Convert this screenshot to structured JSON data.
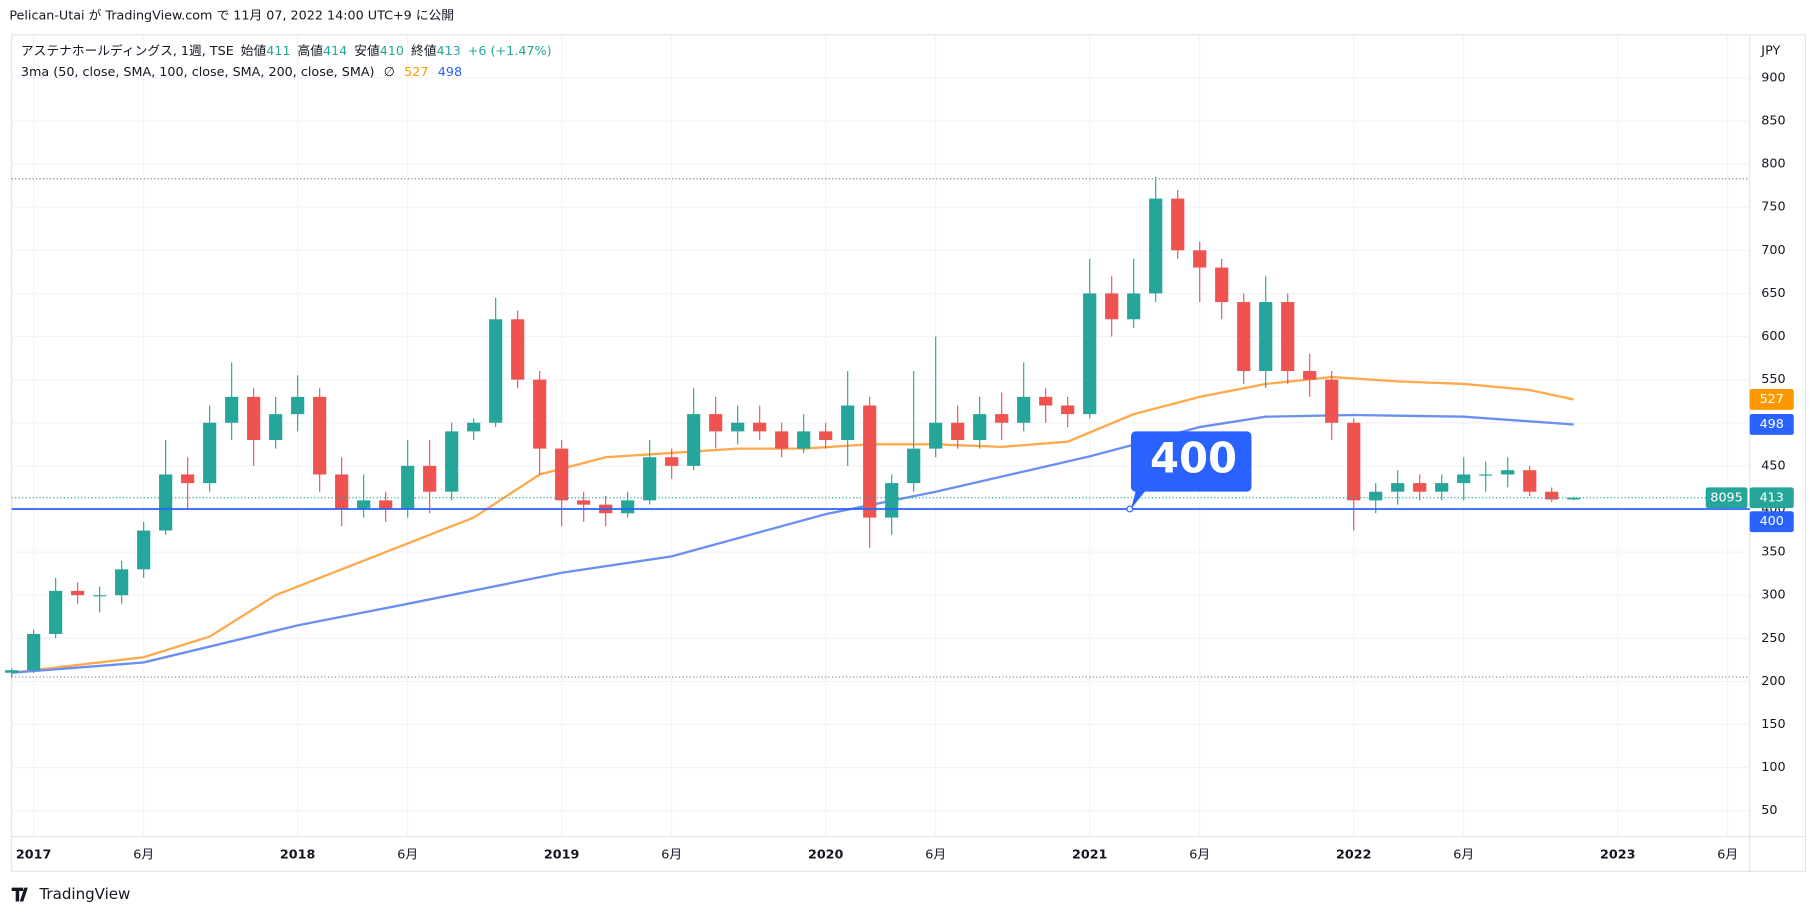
{
  "header": {
    "publish": "Pelican-Utai が TradingView.com で 11月 07, 2022 14:00 UTC+9 に公開",
    "logo": "TradingView"
  },
  "chart_data": {
    "type": "candlestick",
    "symbol": "アステナホールディングス, 1週, TSE",
    "ohlc_labels": [
      "始値",
      "高値",
      "安値",
      "終値"
    ],
    "change": "+6 (+1.47%)",
    "indicator": "3ma (50, close, SMA, 100, close, SMA, 200, close, SMA)",
    "indicator_icon": "∅",
    "currency": "JPY",
    "up_color": "#26a69a",
    "down_color": "#ef5350",
    "x": [
      "2016-12",
      "2017-01",
      "2017-02",
      "2017-03",
      "2017-04",
      "2017-05",
      "2017-06",
      "2017-07",
      "2017-08",
      "2017-09",
      "2017-10",
      "2017-11",
      "2017-12",
      "2018-01",
      "2018-02",
      "2018-03",
      "2018-04",
      "2018-05",
      "2018-06",
      "2018-07",
      "2018-08",
      "2018-09",
      "2018-10",
      "2018-11",
      "2018-12",
      "2019-01",
      "2019-02",
      "2019-03",
      "2019-04",
      "2019-05",
      "2019-06",
      "2019-07",
      "2019-08",
      "2019-09",
      "2019-10",
      "2019-11",
      "2019-12",
      "2020-01",
      "2020-02",
      "2020-03",
      "2020-04",
      "2020-05",
      "2020-06",
      "2020-07",
      "2020-08",
      "2020-09",
      "2020-10",
      "2020-11",
      "2020-12",
      "2021-01",
      "2021-02",
      "2021-03",
      "2021-04",
      "2021-05",
      "2021-06",
      "2021-07",
      "2021-08",
      "2021-09",
      "2021-10",
      "2021-11",
      "2021-12",
      "2022-01",
      "2022-02",
      "2022-03",
      "2022-04",
      "2022-05",
      "2022-06",
      "2022-07",
      "2022-08",
      "2022-09",
      "2022-10",
      "2022-11"
    ],
    "open": [
      210,
      213,
      255,
      305,
      300,
      300,
      330,
      375,
      440,
      430,
      500,
      530,
      480,
      510,
      530,
      440,
      400,
      410,
      400,
      450,
      420,
      490,
      500,
      620,
      550,
      470,
      410,
      405,
      395,
      410,
      460,
      450,
      510,
      490,
      500,
      490,
      470,
      490,
      480,
      520,
      390,
      430,
      470,
      500,
      480,
      510,
      500,
      530,
      520,
      510,
      650,
      620,
      650,
      760,
      700,
      680,
      640,
      560,
      640,
      560,
      550,
      500,
      410,
      420,
      430,
      420,
      430,
      440,
      440,
      445,
      420,
      411
    ],
    "high": [
      215,
      260,
      320,
      315,
      310,
      340,
      385,
      480,
      460,
      520,
      570,
      540,
      530,
      555,
      540,
      460,
      440,
      420,
      480,
      480,
      500,
      505,
      645,
      630,
      560,
      480,
      420,
      415,
      420,
      480,
      470,
      540,
      530,
      520,
      520,
      500,
      510,
      500,
      560,
      530,
      440,
      560,
      600,
      520,
      530,
      535,
      570,
      540,
      530,
      690,
      670,
      690,
      785,
      770,
      710,
      690,
      650,
      670,
      650,
      580,
      560,
      505,
      430,
      445,
      440,
      440,
      460,
      455,
      460,
      450,
      425,
      414
    ],
    "low": [
      205,
      210,
      250,
      290,
      280,
      290,
      320,
      370,
      400,
      420,
      480,
      450,
      470,
      490,
      420,
      380,
      390,
      385,
      390,
      395,
      410,
      480,
      495,
      540,
      440,
      380,
      385,
      380,
      390,
      405,
      435,
      445,
      470,
      475,
      480,
      460,
      465,
      470,
      450,
      355,
      370,
      420,
      460,
      470,
      470,
      480,
      490,
      500,
      495,
      505,
      600,
      610,
      640,
      690,
      640,
      620,
      545,
      540,
      545,
      530,
      480,
      375,
      395,
      405,
      410,
      410,
      410,
      420,
      425,
      415,
      408,
      410
    ],
    "close": [
      213,
      255,
      305,
      300,
      300,
      330,
      375,
      440,
      430,
      500,
      530,
      480,
      510,
      530,
      440,
      400,
      410,
      400,
      450,
      420,
      490,
      500,
      620,
      550,
      470,
      410,
      405,
      395,
      410,
      460,
      450,
      510,
      490,
      500,
      490,
      470,
      490,
      480,
      520,
      390,
      430,
      470,
      500,
      480,
      510,
      500,
      530,
      520,
      510,
      650,
      620,
      650,
      760,
      700,
      680,
      640,
      560,
      640,
      560,
      550,
      500,
      410,
      420,
      430,
      420,
      430,
      440,
      440,
      445,
      420,
      411,
      413
    ],
    "ma": [
      {
        "color": "#ffa94d",
        "x": [
          "2016-12",
          "2017-06",
          "2017-09",
          "2017-12",
          "2018-03",
          "2018-06",
          "2018-09",
          "2018-12",
          "2019-03",
          "2019-06",
          "2019-09",
          "2019-12",
          "2020-03",
          "2020-06",
          "2020-09",
          "2020-12",
          "2021-03",
          "2021-06",
          "2021-09",
          "2021-12",
          "2022-03",
          "2022-06",
          "2022-09",
          "2022-11"
        ],
        "values": [
          210,
          228,
          252,
          300,
          330,
          360,
          390,
          440,
          460,
          465,
          470,
          470,
          475,
          475,
          472,
          478,
          510,
          530,
          545,
          553,
          548,
          545,
          538,
          527
        ]
      },
      {
        "color": "#6b8ff0",
        "x": [
          "2016-12",
          "2017-06",
          "2018-01",
          "2018-06",
          "2019-01",
          "2019-06",
          "2020-01",
          "2020-06",
          "2021-01",
          "2021-06",
          "2021-09",
          "2022-01",
          "2022-06",
          "2022-11"
        ],
        "values": [
          210,
          222,
          265,
          290,
          326,
          345,
          394,
          420,
          461,
          495,
          507,
          509,
          507,
          498
        ]
      }
    ],
    "hline": {
      "value": 400,
      "color": "#2962ff"
    },
    "volume": 8095,
    "range_lines": [
      783,
      205
    ],
    "xlim": [
      "2016-12",
      "2023-07"
    ],
    "xticks": [
      {
        "value": "2017-01",
        "label": "2017"
      },
      {
        "value": "2017-06",
        "label": "6月"
      },
      {
        "value": "2018-01",
        "label": "2018"
      },
      {
        "value": "2018-06",
        "label": "6月"
      },
      {
        "value": "2019-01",
        "label": "2019"
      },
      {
        "value": "2019-06",
        "label": "6月"
      },
      {
        "value": "2020-01",
        "label": "2020"
      },
      {
        "value": "2020-06",
        "label": "6月"
      },
      {
        "value": "2021-01",
        "label": "2021"
      },
      {
        "value": "2021-06",
        "label": "6月"
      },
      {
        "value": "2022-01",
        "label": "2022"
      },
      {
        "value": "2022-06",
        "label": "6月"
      },
      {
        "value": "2023-01",
        "label": "2023"
      },
      {
        "value": "2023-06",
        "label": "6月"
      }
    ],
    "ylim": [
      20,
      950
    ],
    "yticks": [
      50,
      100,
      150,
      200,
      250,
      300,
      350,
      400,
      450,
      500,
      550,
      600,
      650,
      700,
      750,
      800,
      850,
      900
    ]
  }
}
